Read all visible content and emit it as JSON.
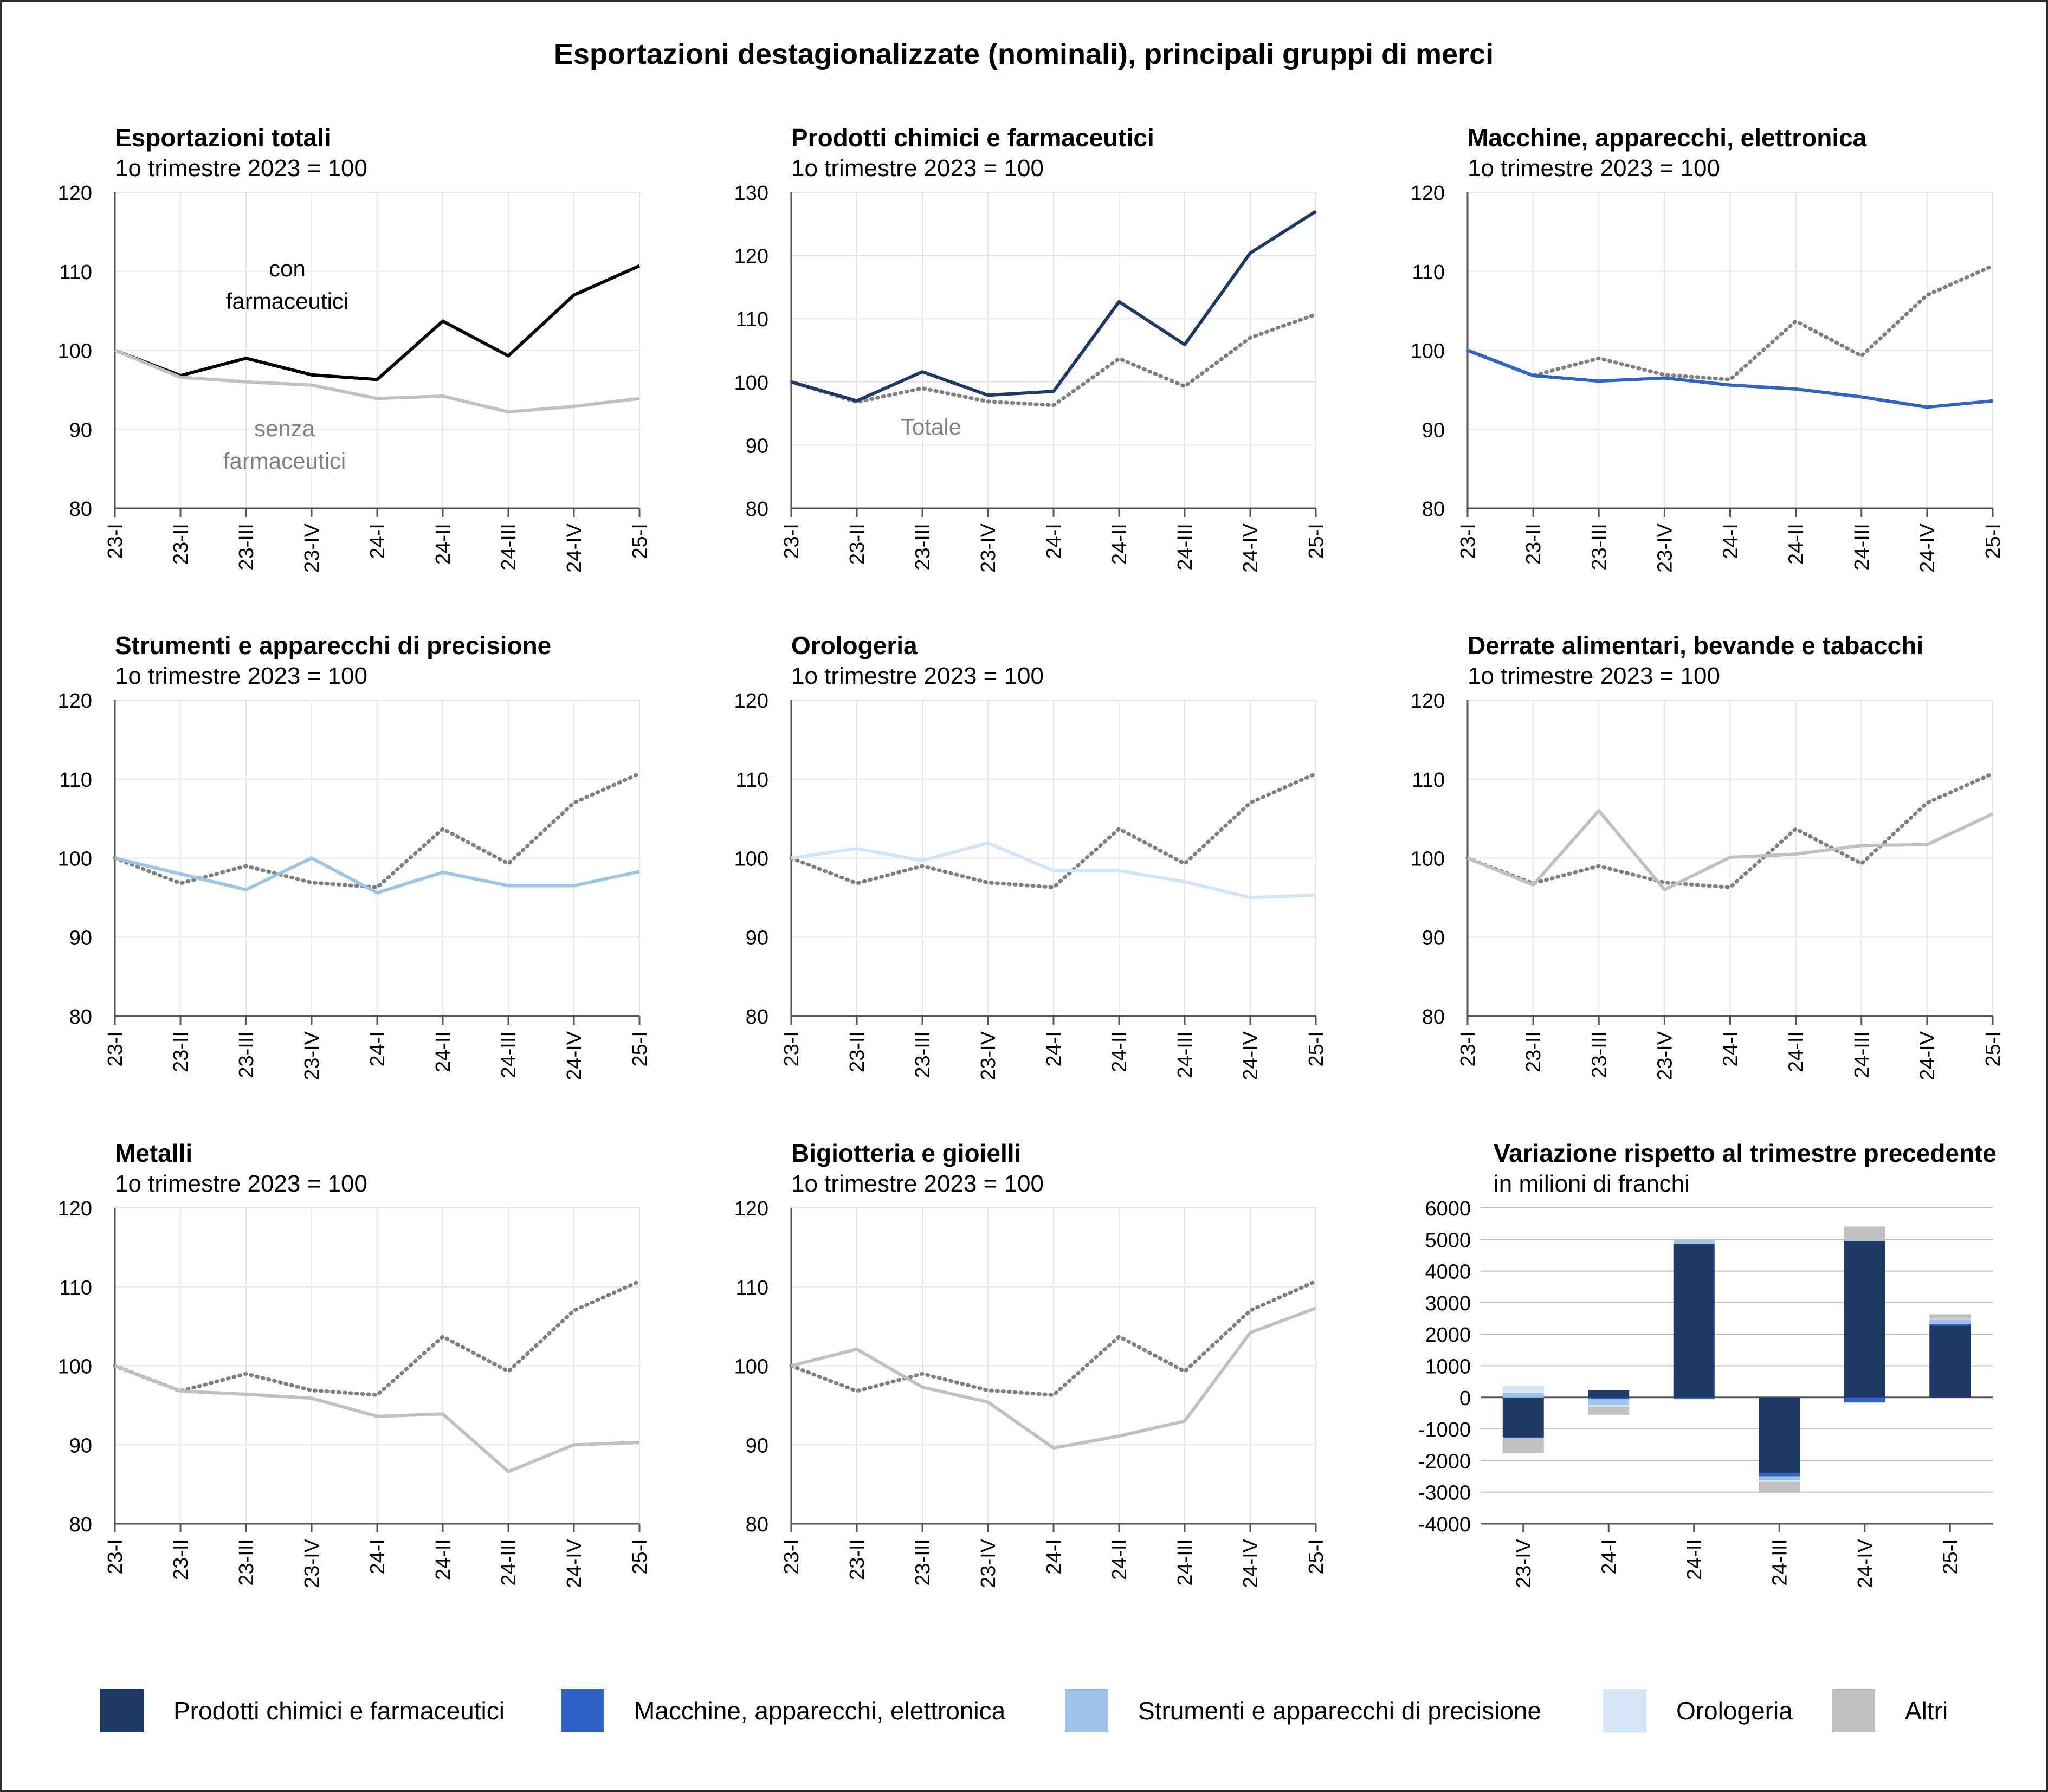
{
  "title": "Esportazioni destagionalizzate (nominali), principali gruppi di merci",
  "colors": {
    "chem": "#1f3864",
    "mach": "#2f63c8",
    "instr": "#9dc3e6",
    "watch": "#d3e4f4",
    "other": "#c0c0c0",
    "total": "#7f7f7f",
    "black": "#000000",
    "grid": "#e6e6e6",
    "axis": "#555555"
  },
  "chart_data": [
    {
      "type": "line",
      "title": "Esportazioni totali",
      "subtitle": "1o trimestre 2023 = 100",
      "categories": [
        "23-I",
        "23-II",
        "23-III",
        "23-IV",
        "24-I",
        "24-II",
        "24-III",
        "24-IV",
        "25-I"
      ],
      "ylim": [
        80,
        120
      ],
      "yticks": [
        80,
        90,
        100,
        110,
        120
      ],
      "series": [
        {
          "name": "con farmaceutici",
          "color": "black",
          "dash": false,
          "values": [
            100,
            96.8,
            99.0,
            96.9,
            96.3,
            103.7,
            99.3,
            107.0,
            110.7
          ]
        },
        {
          "name": "senza farmaceutici",
          "color": "other",
          "dash": false,
          "values": [
            100,
            96.6,
            96.0,
            95.6,
            93.9,
            94.2,
            92.2,
            92.9,
            93.9
          ]
        }
      ],
      "annotations": [
        {
          "lines": [
            "con",
            "farmaceutici"
          ],
          "color": "black"
        },
        {
          "lines": [
            "senza",
            "farmaceutici"
          ],
          "color": "total"
        }
      ]
    },
    {
      "type": "line",
      "title": "Prodotti chimici e farmaceutici",
      "subtitle": "1o trimestre 2023 = 100",
      "categories": [
        "23-I",
        "23-II",
        "23-III",
        "23-IV",
        "24-I",
        "24-II",
        "24-III",
        "24-IV",
        "25-I"
      ],
      "ylim": [
        80,
        130
      ],
      "yticks": [
        80,
        90,
        100,
        110,
        120,
        130
      ],
      "series": [
        {
          "name": "Prodotti chimici e farmaceutici",
          "color": "chem",
          "dash": false,
          "values": [
            100,
            97.0,
            101.6,
            97.9,
            98.5,
            112.7,
            105.9,
            120.4,
            127.0
          ]
        },
        {
          "name": "Totale",
          "color": "total",
          "dash": true,
          "values": [
            100,
            96.8,
            99.0,
            96.9,
            96.3,
            103.7,
            99.3,
            107.0,
            110.7
          ]
        }
      ],
      "annotations": [
        {
          "lines": [
            "Totale"
          ],
          "color": "total"
        }
      ]
    },
    {
      "type": "line",
      "title": "Macchine, apparecchi, elettronica",
      "subtitle": "1o trimestre 2023 = 100",
      "categories": [
        "23-I",
        "23-II",
        "23-III",
        "23-IV",
        "24-I",
        "24-II",
        "24-III",
        "24-IV",
        "25-I"
      ],
      "ylim": [
        80,
        120
      ],
      "yticks": [
        80,
        90,
        100,
        110,
        120
      ],
      "series": [
        {
          "name": "Macchine, apparecchi, elettronica",
          "color": "mach",
          "dash": false,
          "values": [
            100,
            96.8,
            96.1,
            96.5,
            95.6,
            95.1,
            94.1,
            92.8,
            93.6
          ]
        },
        {
          "name": "Totale",
          "color": "total",
          "dash": true,
          "values": [
            100,
            96.8,
            99.0,
            96.9,
            96.3,
            103.7,
            99.3,
            107.0,
            110.7
          ]
        }
      ],
      "annotations": []
    },
    {
      "type": "line",
      "title": "Strumenti e apparecchi di precisione",
      "subtitle": "1o trimestre 2023 = 100",
      "categories": [
        "23-I",
        "23-II",
        "23-III",
        "23-IV",
        "24-I",
        "24-II",
        "24-III",
        "24-IV",
        "25-I"
      ],
      "ylim": [
        80,
        120
      ],
      "yticks": [
        80,
        90,
        100,
        110,
        120
      ],
      "series": [
        {
          "name": "Strumenti e apparecchi di precisione",
          "color": "instr",
          "dash": false,
          "values": [
            100,
            98.0,
            96.0,
            100.0,
            95.6,
            98.2,
            96.5,
            96.5,
            98.3
          ]
        },
        {
          "name": "Totale",
          "color": "total",
          "dash": true,
          "values": [
            100,
            96.8,
            99.0,
            96.9,
            96.3,
            103.7,
            99.3,
            107.0,
            110.7
          ]
        }
      ],
      "annotations": []
    },
    {
      "type": "line",
      "title": "Orologeria",
      "subtitle": "1o trimestre 2023 = 100",
      "categories": [
        "23-I",
        "23-II",
        "23-III",
        "23-IV",
        "24-I",
        "24-II",
        "24-III",
        "24-IV",
        "25-I"
      ],
      "ylim": [
        80,
        120
      ],
      "yticks": [
        80,
        90,
        100,
        110,
        120
      ],
      "series": [
        {
          "name": "Orologeria",
          "color": "watch",
          "dash": false,
          "values": [
            100,
            101.2,
            99.7,
            101.9,
            98.4,
            98.4,
            97.0,
            95.0,
            95.3
          ]
        },
        {
          "name": "Totale",
          "color": "total",
          "dash": true,
          "values": [
            100,
            96.8,
            99.0,
            96.9,
            96.3,
            103.7,
            99.3,
            107.0,
            110.7
          ]
        }
      ],
      "annotations": []
    },
    {
      "type": "line",
      "title": "Derrate alimentari, bevande e tabacchi",
      "subtitle": "1o trimestre 2023 = 100",
      "categories": [
        "23-I",
        "23-II",
        "23-III",
        "23-IV",
        "24-I",
        "24-II",
        "24-III",
        "24-IV",
        "25-I"
      ],
      "ylim": [
        80,
        120
      ],
      "yticks": [
        80,
        90,
        100,
        110,
        120
      ],
      "series": [
        {
          "name": "Derrate alimentari, bevande e tabacchi",
          "color": "other",
          "dash": false,
          "values": [
            100,
            96.6,
            106.0,
            96.0,
            100.1,
            100.5,
            101.6,
            101.7,
            105.6
          ]
        },
        {
          "name": "Totale",
          "color": "total",
          "dash": true,
          "values": [
            100,
            96.8,
            99.0,
            96.9,
            96.3,
            103.7,
            99.3,
            107.0,
            110.7
          ]
        }
      ],
      "annotations": []
    },
    {
      "type": "line",
      "title": "Metalli",
      "subtitle": "1o trimestre 2023 = 100",
      "categories": [
        "23-I",
        "23-II",
        "23-III",
        "23-IV",
        "24-I",
        "24-II",
        "24-III",
        "24-IV",
        "25-I"
      ],
      "ylim": [
        80,
        120
      ],
      "yticks": [
        80,
        90,
        100,
        110,
        120
      ],
      "series": [
        {
          "name": "Metalli",
          "color": "other",
          "dash": false,
          "values": [
            100,
            96.8,
            96.4,
            95.9,
            93.6,
            93.9,
            86.6,
            90.0,
            90.3
          ]
        },
        {
          "name": "Totale",
          "color": "total",
          "dash": true,
          "values": [
            100,
            96.8,
            99.0,
            96.9,
            96.3,
            103.7,
            99.3,
            107.0,
            110.7
          ]
        }
      ],
      "annotations": []
    },
    {
      "type": "line",
      "title": "Bigiotteria e gioielli",
      "subtitle": "1o trimestre 2023 = 100",
      "categories": [
        "23-I",
        "23-II",
        "23-III",
        "23-IV",
        "24-I",
        "24-II",
        "24-III",
        "24-IV",
        "25-I"
      ],
      "ylim": [
        80,
        120
      ],
      "yticks": [
        80,
        90,
        100,
        110,
        120
      ],
      "series": [
        {
          "name": "Bigiotteria e gioielli",
          "color": "other",
          "dash": false,
          "values": [
            100,
            102.1,
            97.3,
            95.4,
            89.6,
            91.1,
            93.0,
            104.2,
            107.3
          ]
        },
        {
          "name": "Totale",
          "color": "total",
          "dash": true,
          "values": [
            100,
            96.8,
            99.0,
            96.9,
            96.3,
            103.7,
            99.3,
            107.0,
            110.7
          ]
        }
      ],
      "annotations": []
    },
    {
      "type": "bar",
      "stacked": true,
      "title": "Variazione rispetto al trimestre precedente",
      "subtitle": "in milioni di franchi",
      "categories": [
        "23-IV",
        "24-I",
        "24-II",
        "24-III",
        "24-IV",
        "25-I"
      ],
      "ylim": [
        -4000,
        6000
      ],
      "yticks": [
        -4000,
        -3000,
        -2000,
        -1000,
        0,
        1000,
        2000,
        3000,
        4000,
        5000,
        6000
      ],
      "series": [
        {
          "name": "Prodotti chimici e farmaceutici",
          "color": "chem",
          "values": [
            -1250,
            230,
            4850,
            -2400,
            4950,
            2270
          ]
        },
        {
          "name": "Macchine, apparecchi, elettronica",
          "color": "mach",
          "values": [
            -30,
            -60,
            -40,
            -100,
            -160,
            60
          ]
        },
        {
          "name": "Strumenti e apparecchi di precisione",
          "color": "instr",
          "values": [
            140,
            -180,
            120,
            -130,
            30,
            130
          ]
        },
        {
          "name": "Orologeria",
          "color": "watch",
          "values": [
            220,
            -60,
            -30,
            -30,
            -30,
            30
          ]
        },
        {
          "name": "Altri",
          "color": "other",
          "values": [
            -480,
            -250,
            20,
            -380,
            430,
            140
          ]
        }
      ]
    }
  ],
  "legend": [
    {
      "label": "Prodotti chimici e farmaceutici",
      "color": "chem"
    },
    {
      "label": "Macchine, apparecchi, elettronica",
      "color": "mach"
    },
    {
      "label": "Strumenti e apparecchi di precisione",
      "color": "instr"
    },
    {
      "label": "Orologeria",
      "color": "watch"
    },
    {
      "label": "Altri",
      "color": "other"
    }
  ]
}
